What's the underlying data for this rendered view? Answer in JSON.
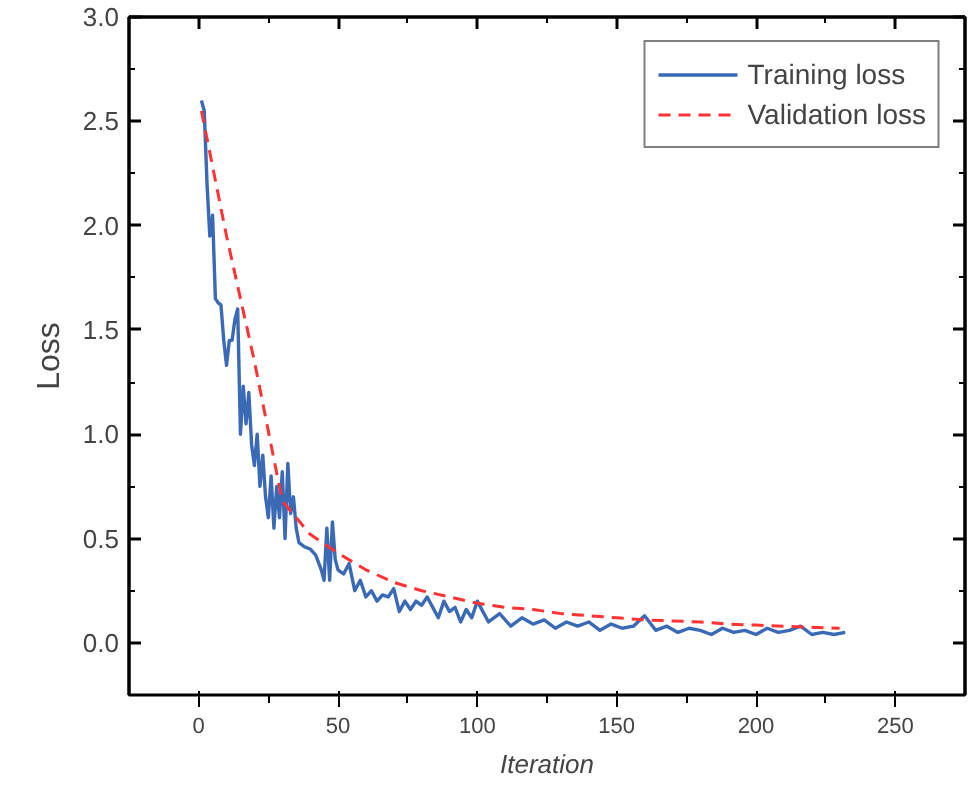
{
  "chart_data": {
    "type": "line",
    "xlabel": "Iteration",
    "ylabel": "Loss",
    "xlim": [
      -25,
      275
    ],
    "ylim": [
      -0.25,
      3.0
    ],
    "xticks": [
      0,
      50,
      100,
      150,
      200,
      250
    ],
    "yticks": [
      {
        "value": 0,
        "label": "0.0"
      },
      {
        "value": 0.5,
        "label": "0.5"
      },
      {
        "value": 1,
        "label": "1.0"
      },
      {
        "value": 1.5,
        "label": "1.5"
      },
      {
        "value": 2,
        "label": "2.0"
      },
      {
        "value": 2.5,
        "label": "2.5"
      },
      {
        "value": 3,
        "label": "3.0"
      }
    ],
    "grid": false,
    "legend": "top right",
    "series": [
      {
        "name": "Training loss",
        "color": "#3a6ab5",
        "line_style": "solid",
        "x": [
          1,
          2,
          3,
          4,
          5,
          6,
          7,
          8,
          9,
          10,
          11,
          12,
          13,
          14,
          15,
          16,
          17,
          18,
          19,
          20,
          21,
          22,
          23,
          24,
          25,
          26,
          27,
          28,
          29,
          30,
          31,
          32,
          33,
          34,
          35,
          36,
          38,
          40,
          42,
          44,
          45,
          46,
          47,
          48,
          49,
          50,
          52,
          54,
          56,
          58,
          60,
          62,
          64,
          66,
          68,
          70,
          72,
          74,
          76,
          78,
          80,
          82,
          84,
          86,
          88,
          90,
          92,
          94,
          96,
          98,
          100,
          104,
          108,
          112,
          116,
          120,
          124,
          128,
          132,
          136,
          140,
          144,
          148,
          152,
          156,
          160,
          164,
          168,
          172,
          176,
          180,
          184,
          188,
          192,
          196,
          200,
          204,
          208,
          212,
          216,
          220,
          224,
          228,
          232
        ],
        "values": [
          2.6,
          2.55,
          2.2,
          1.95,
          2.05,
          1.65,
          1.63,
          1.62,
          1.45,
          1.33,
          1.45,
          1.45,
          1.55,
          1.6,
          1.0,
          1.23,
          1.05,
          1.2,
          0.95,
          0.85,
          1.0,
          0.75,
          0.9,
          0.7,
          0.6,
          0.8,
          0.55,
          0.75,
          0.6,
          0.82,
          0.5,
          0.86,
          0.62,
          0.7,
          0.55,
          0.48,
          0.46,
          0.45,
          0.42,
          0.35,
          0.3,
          0.55,
          0.3,
          0.58,
          0.4,
          0.35,
          0.33,
          0.38,
          0.25,
          0.3,
          0.22,
          0.25,
          0.2,
          0.23,
          0.22,
          0.26,
          0.15,
          0.2,
          0.16,
          0.2,
          0.18,
          0.22,
          0.17,
          0.12,
          0.2,
          0.15,
          0.17,
          0.1,
          0.16,
          0.12,
          0.2,
          0.1,
          0.14,
          0.08,
          0.12,
          0.09,
          0.11,
          0.07,
          0.1,
          0.08,
          0.1,
          0.06,
          0.09,
          0.07,
          0.08,
          0.13,
          0.06,
          0.08,
          0.05,
          0.07,
          0.06,
          0.04,
          0.07,
          0.05,
          0.06,
          0.04,
          0.07,
          0.05,
          0.06,
          0.08,
          0.04,
          0.05,
          0.04,
          0.05
        ]
      },
      {
        "name": "Validation loss",
        "color": "#ff3333",
        "line_style": "dashed",
        "x": [
          1,
          10,
          20,
          30,
          40,
          50,
          60,
          70,
          80,
          90,
          100,
          110,
          120,
          130,
          140,
          150,
          160,
          170,
          180,
          190,
          200,
          210,
          220,
          230
        ],
        "values": [
          2.55,
          1.95,
          1.35,
          0.68,
          0.52,
          0.43,
          0.35,
          0.29,
          0.25,
          0.22,
          0.19,
          0.17,
          0.16,
          0.14,
          0.13,
          0.12,
          0.11,
          0.105,
          0.1,
          0.09,
          0.085,
          0.08,
          0.075,
          0.07
        ]
      }
    ]
  }
}
